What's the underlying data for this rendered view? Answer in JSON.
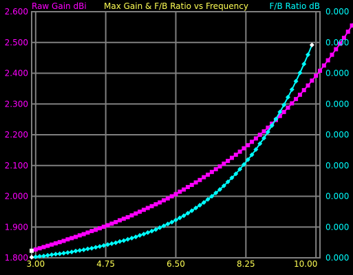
{
  "chart_data": {
    "type": "line",
    "title": "Max Gain & F/B Ratio vs Frequency",
    "y_left_label": "Raw Gain dBi",
    "y_right_label": "F/B Ratio dB",
    "x_ticks": [
      "3.00",
      "4.75",
      "6.50",
      "8.25",
      "10.00"
    ],
    "y_left_ticks": [
      "2.600",
      "2.500",
      "2.400",
      "2.300",
      "2.200",
      "2.100",
      "2.000",
      "1.900",
      "1.800"
    ],
    "y_right_ticks": [
      "0.000",
      "0.000",
      "0.000",
      "0.000",
      "0.000",
      "0.000",
      "0.000",
      "0.000",
      "0.000"
    ],
    "xlim": [
      2.9,
      10.1
    ],
    "ylim_left": [
      1.8,
      2.6
    ],
    "grid": true,
    "colors": {
      "gain": "#ff00ff",
      "fb": "#00ffff",
      "title": "#ffff55",
      "grid": "#808080",
      "endpoint": "#ffffff"
    },
    "series": [
      {
        "name": "Raw Gain dBi",
        "marker": "square",
        "x_start": 2.9,
        "x_step": 0.1,
        "values": [
          1.823,
          1.827,
          1.831,
          1.835,
          1.839,
          1.843,
          1.847,
          1.851,
          1.855,
          1.86,
          1.864,
          1.868,
          1.873,
          1.877,
          1.882,
          1.887,
          1.891,
          1.896,
          1.901,
          1.906,
          1.911,
          1.916,
          1.922,
          1.927,
          1.932,
          1.938,
          1.944,
          1.95,
          1.956,
          1.962,
          1.968,
          1.974,
          1.98,
          1.987,
          1.993,
          2.0,
          2.007,
          2.015,
          2.022,
          2.03,
          2.037,
          2.045,
          2.053,
          2.062,
          2.07,
          2.079,
          2.088,
          2.097,
          2.106,
          2.115,
          2.125,
          2.135,
          2.145,
          2.156,
          2.166,
          2.177,
          2.188,
          2.2,
          2.211,
          2.223,
          2.236,
          2.248,
          2.261,
          2.274,
          2.288,
          2.302,
          2.316,
          2.33,
          2.345,
          2.36,
          2.376,
          2.392,
          2.408,
          2.425,
          2.442,
          2.46,
          2.478,
          2.496,
          2.515,
          2.535,
          2.555,
          2.575,
          2.596
        ]
      },
      {
        "name": "F/B Ratio dB",
        "marker": "diamond",
        "x_start": 2.9,
        "x_step": 0.1,
        "values": [
          1.802,
          1.803,
          1.805,
          1.806,
          1.808,
          1.81,
          1.812,
          1.813,
          1.815,
          1.817,
          1.819,
          1.822,
          1.824,
          1.826,
          1.829,
          1.831,
          1.834,
          1.837,
          1.84,
          1.843,
          1.846,
          1.849,
          1.853,
          1.856,
          1.86,
          1.864,
          1.868,
          1.873,
          1.877,
          1.882,
          1.887,
          1.892,
          1.898,
          1.904,
          1.91,
          1.916,
          1.923,
          1.93,
          1.937,
          1.945,
          1.953,
          1.962,
          1.971,
          1.98,
          1.99,
          2.0,
          2.011,
          2.022,
          2.034,
          2.047,
          2.06,
          2.073,
          2.088,
          2.103,
          2.119,
          2.135,
          2.152,
          2.171,
          2.189,
          2.209,
          2.23,
          2.251,
          2.274,
          2.297,
          2.322,
          2.347,
          2.374,
          2.401,
          2.43,
          2.46,
          2.492
        ]
      }
    ]
  }
}
